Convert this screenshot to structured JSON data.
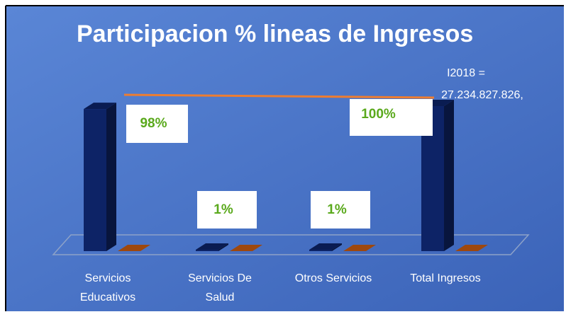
{
  "chart_data": {
    "type": "bar3d",
    "title": "Participacion % lineas de Ingresos",
    "annotation": [
      "I2018 =",
      "27.234.827.826,"
    ],
    "categories": [
      "Servicios Educativos",
      "Servicios De Salud",
      "Otros Servicios",
      "Total Ingresos"
    ],
    "series": [
      {
        "color": "#0d2366",
        "values": [
          98,
          1,
          1,
          100
        ],
        "value_labels": [
          "98%",
          "1%",
          "1%",
          "100%"
        ],
        "label_color": "#5aa91c"
      },
      {
        "color": "#c55a11",
        "values": [
          0,
          0,
          0,
          0
        ]
      }
    ],
    "ylim": [
      0,
      100
    ]
  }
}
